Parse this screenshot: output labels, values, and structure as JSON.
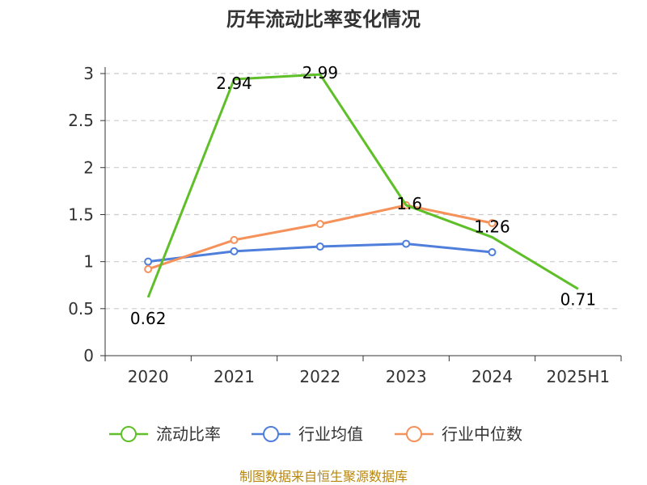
{
  "chart_data": {
    "type": "line",
    "title": "历年流动比率变化情况",
    "categories": [
      "2020",
      "2021",
      "2022",
      "2023",
      "2024",
      "2025H1"
    ],
    "ylim": [
      0,
      3
    ],
    "yticks": [
      "0",
      "0.5",
      "1",
      "1.5",
      "2",
      "2.5",
      "3"
    ],
    "grid": true,
    "legend_position": "bottom",
    "series": [
      {
        "name": "流动比率",
        "color": "#5fbf28",
        "values": [
          0.62,
          2.94,
          2.99,
          1.6,
          1.26,
          0.71
        ],
        "labels": [
          "0.62",
          "2.94",
          "2.99",
          "1.6",
          "1.26",
          "0.71"
        ]
      },
      {
        "name": "行业均值",
        "color": "#4f7fdb",
        "values": [
          1.0,
          1.11,
          1.16,
          1.19,
          1.1,
          null
        ]
      },
      {
        "name": "行业中位数",
        "color": "#f5915a",
        "values": [
          0.92,
          1.23,
          1.4,
          1.6,
          1.41,
          null
        ]
      }
    ],
    "source": "制图数据来自恒生聚源数据库"
  }
}
